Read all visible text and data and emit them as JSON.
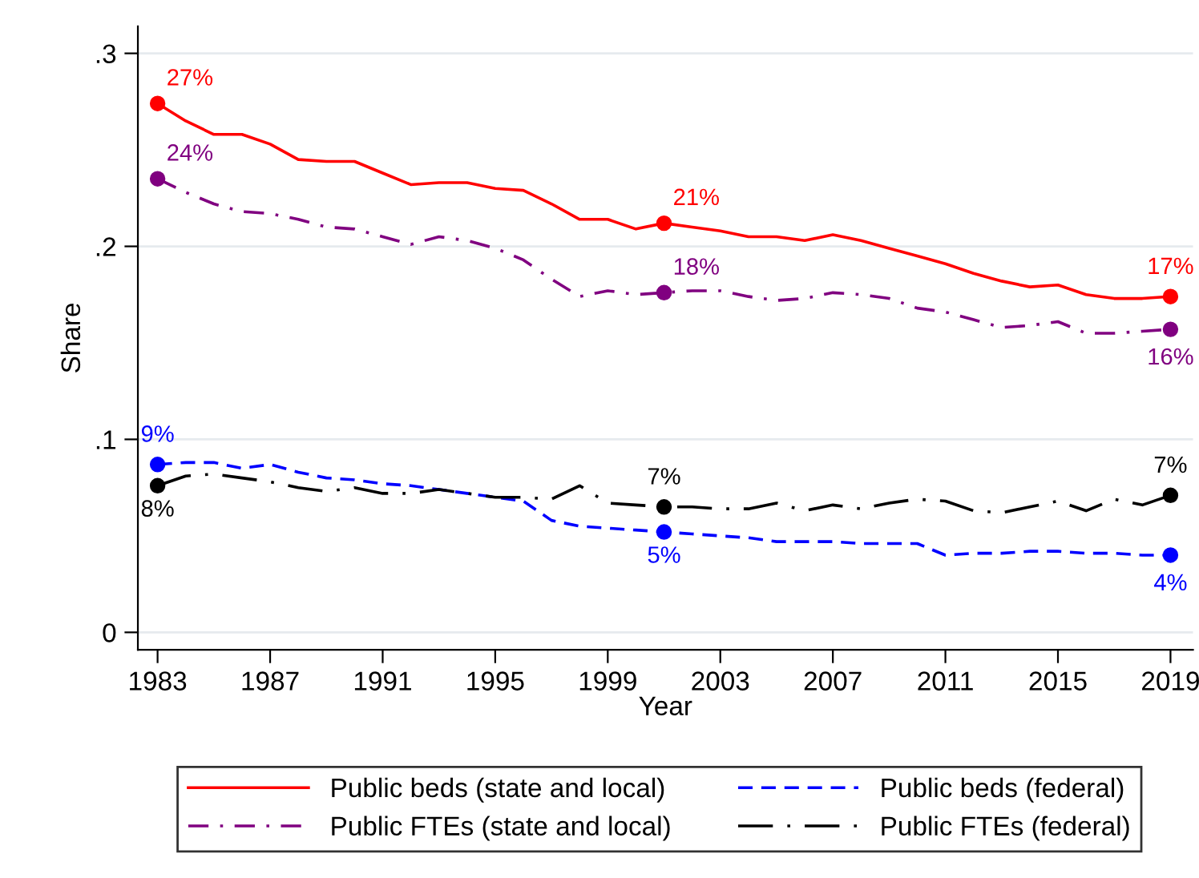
{
  "chart_data": {
    "type": "line",
    "xlabel": "Year",
    "ylabel": "Share",
    "x": [
      1983,
      1984,
      1985,
      1986,
      1987,
      1988,
      1989,
      1990,
      1991,
      1992,
      1993,
      1994,
      1995,
      1996,
      1997,
      1998,
      1999,
      2000,
      2001,
      2002,
      2003,
      2004,
      2005,
      2006,
      2007,
      2008,
      2009,
      2010,
      2011,
      2012,
      2013,
      2014,
      2015,
      2016,
      2017,
      2018,
      2019
    ],
    "series": [
      {
        "name": "Public beds (state and local)",
        "color": "#ff0000",
        "line_style": "solid",
        "values": [
          0.274,
          0.265,
          0.258,
          0.258,
          0.253,
          0.245,
          0.244,
          0.244,
          0.238,
          0.232,
          0.233,
          0.233,
          0.23,
          0.229,
          0.222,
          0.214,
          0.214,
          0.209,
          0.212,
          0.21,
          0.208,
          0.205,
          0.205,
          0.203,
          0.206,
          0.203,
          0.199,
          0.195,
          0.191,
          0.186,
          0.182,
          0.179,
          0.18,
          0.175,
          0.173,
          0.173,
          0.174
        ],
        "value_labels": [
          "27%",
          null,
          null,
          null,
          null,
          null,
          null,
          null,
          null,
          null,
          null,
          null,
          null,
          null,
          null,
          null,
          null,
          null,
          "21%",
          null,
          null,
          null,
          null,
          null,
          null,
          null,
          null,
          null,
          null,
          null,
          null,
          null,
          null,
          null,
          null,
          null,
          "17%"
        ]
      },
      {
        "name": "Public beds (federal)",
        "color": "#0000ff",
        "line_style": "dashed",
        "values": [
          0.087,
          0.088,
          0.088,
          0.085,
          0.087,
          0.083,
          0.08,
          0.079,
          0.077,
          0.076,
          0.074,
          0.072,
          0.07,
          0.068,
          0.058,
          0.055,
          0.054,
          0.053,
          0.052,
          0.051,
          0.05,
          0.049,
          0.047,
          0.047,
          0.047,
          0.046,
          0.046,
          0.046,
          0.04,
          0.041,
          0.041,
          0.042,
          0.042,
          0.041,
          0.041,
          0.04,
          0.04
        ],
        "value_labels": [
          "9%",
          null,
          null,
          null,
          null,
          null,
          null,
          null,
          null,
          null,
          null,
          null,
          null,
          null,
          null,
          null,
          null,
          null,
          "5%",
          null,
          null,
          null,
          null,
          null,
          null,
          null,
          null,
          null,
          null,
          null,
          null,
          null,
          null,
          null,
          null,
          null,
          "4%"
        ]
      },
      {
        "name": "Public FTEs (state and local)",
        "color": "#800080",
        "line_style": "dashdot",
        "values": [
          0.235,
          0.228,
          0.222,
          0.218,
          0.217,
          0.214,
          0.21,
          0.209,
          0.205,
          0.201,
          0.205,
          0.203,
          0.199,
          0.193,
          0.183,
          0.174,
          0.177,
          0.175,
          0.176,
          0.177,
          0.177,
          0.174,
          0.172,
          0.173,
          0.176,
          0.175,
          0.173,
          0.168,
          0.166,
          0.162,
          0.158,
          0.159,
          0.161,
          0.155,
          0.155,
          0.156,
          0.157
        ],
        "value_labels": [
          "24%",
          null,
          null,
          null,
          null,
          null,
          null,
          null,
          null,
          null,
          null,
          null,
          null,
          null,
          null,
          null,
          null,
          null,
          "18%",
          null,
          null,
          null,
          null,
          null,
          null,
          null,
          null,
          null,
          null,
          null,
          null,
          null,
          null,
          null,
          null,
          null,
          "16%"
        ]
      },
      {
        "name": "Public FTEs (federal)",
        "color": "#000000",
        "line_style": "longdashdot",
        "values": [
          0.076,
          0.081,
          0.082,
          0.08,
          0.078,
          0.075,
          0.073,
          0.075,
          0.072,
          0.072,
          0.074,
          0.072,
          0.07,
          0.07,
          0.069,
          0.076,
          0.067,
          0.066,
          0.065,
          0.065,
          0.064,
          0.064,
          0.067,
          0.063,
          0.066,
          0.064,
          0.067,
          0.069,
          0.068,
          0.063,
          0.062,
          0.065,
          0.068,
          0.063,
          0.069,
          0.066,
          0.071
        ],
        "value_labels": [
          "8%",
          null,
          null,
          null,
          null,
          null,
          null,
          null,
          null,
          null,
          null,
          null,
          null,
          null,
          null,
          null,
          null,
          null,
          "7%",
          null,
          null,
          null,
          null,
          null,
          null,
          null,
          null,
          null,
          null,
          null,
          null,
          null,
          null,
          null,
          null,
          null,
          "7%"
        ]
      }
    ],
    "xlim": [
      1982.3,
      2019.8
    ],
    "xticks": [
      1983,
      1987,
      1991,
      1995,
      1999,
      2003,
      2007,
      2011,
      2015,
      2019
    ],
    "ylim": [
      -0.009,
      0.314
    ],
    "yticks": [
      {
        "value": 0,
        "label": "0"
      },
      {
        "value": 0.1,
        "label": ".1"
      },
      {
        "value": 0.2,
        "label": ".2"
      },
      {
        "value": 0.3,
        "label": ".3"
      }
    ],
    "grid": "y",
    "legend": "bottom"
  }
}
